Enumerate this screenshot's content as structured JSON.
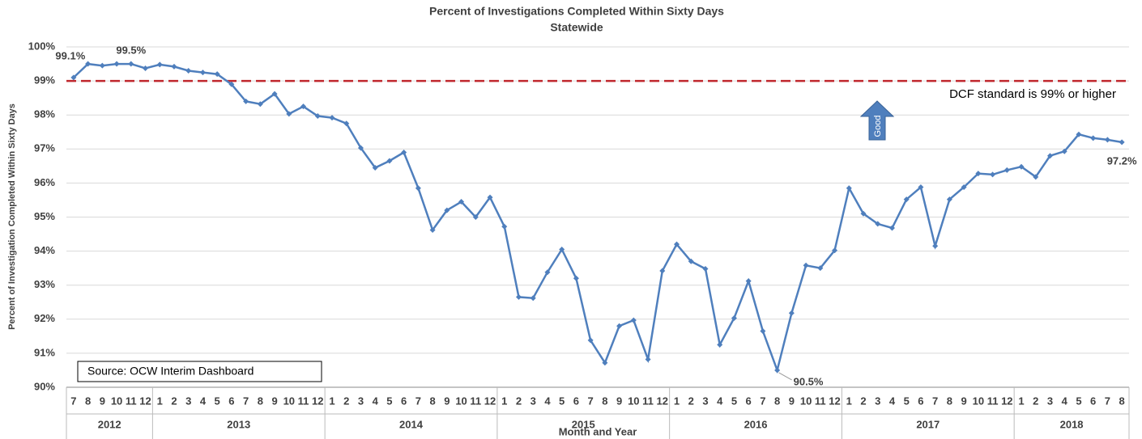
{
  "chart_data": {
    "type": "line",
    "title": "Percent of Investigations Completed Within Sixty Days",
    "subtitle": "Statewide",
    "y_label": "Percent of Investigation Completed Within Sixty Days",
    "x_label": "Month and Year",
    "categories": [
      "7",
      "8",
      "9",
      "10",
      "11",
      "12",
      "1",
      "2",
      "3",
      "4",
      "5",
      "6",
      "7",
      "8",
      "9",
      "10",
      "11",
      "12",
      "1",
      "2",
      "3",
      "4",
      "5",
      "6",
      "7",
      "8",
      "9",
      "10",
      "11",
      "12",
      "1",
      "2",
      "3",
      "4",
      "5",
      "6",
      "7",
      "8",
      "9",
      "10",
      "11",
      "12",
      "1",
      "2",
      "3",
      "4",
      "5",
      "6",
      "7",
      "8",
      "9",
      "10",
      "11",
      "12",
      "1",
      "2",
      "3",
      "4",
      "5",
      "6",
      "7",
      "8",
      "9",
      "10",
      "11",
      "12",
      "1",
      "2",
      "3",
      "4",
      "5",
      "6",
      "7",
      "8"
    ],
    "years": [
      "2012",
      "2013",
      "2014",
      "2015",
      "2016",
      "2017",
      "2018"
    ],
    "series": [
      {
        "name": "Statewide",
        "color": "#4f7fbd",
        "values": [
          99.1,
          99.5,
          99.45,
          99.5,
          99.5,
          99.37,
          99.48,
          99.42,
          99.3,
          99.25,
          99.2,
          98.9,
          98.4,
          98.32,
          98.62,
          98.03,
          98.25,
          97.97,
          97.92,
          97.75,
          97.03,
          96.45,
          96.65,
          96.9,
          95.85,
          94.62,
          95.2,
          95.45,
          95.0,
          95.58,
          94.72,
          92.65,
          92.62,
          93.38,
          94.05,
          93.2,
          91.38,
          90.72,
          91.8,
          91.97,
          90.82,
          93.42,
          94.2,
          93.7,
          93.48,
          91.25,
          92.03,
          93.12,
          91.65,
          90.5,
          92.18,
          93.58,
          93.5,
          94.02,
          95.85,
          95.1,
          94.8,
          94.68,
          95.52,
          95.88,
          94.15,
          95.52,
          95.88,
          96.28,
          96.25,
          96.38,
          96.48,
          96.18,
          96.8,
          96.93,
          97.43,
          97.32,
          97.27,
          97.2
        ],
        "value_labels": [
          "99.1%",
          null,
          null,
          null,
          "99.5%",
          null,
          null,
          null,
          null,
          null,
          null,
          null,
          null,
          null,
          null,
          null,
          null,
          null,
          null,
          null,
          null,
          null,
          null,
          null,
          null,
          null,
          null,
          null,
          null,
          null,
          null,
          null,
          null,
          null,
          null,
          null,
          null,
          null,
          null,
          null,
          null,
          null,
          null,
          null,
          null,
          null,
          null,
          null,
          null,
          "90.5%",
          null,
          null,
          null,
          null,
          null,
          null,
          null,
          null,
          null,
          null,
          null,
          null,
          null,
          null,
          null,
          null,
          null,
          null,
          null,
          null,
          null,
          null,
          null,
          "97.2%"
        ]
      }
    ],
    "ylim": [
      90,
      100
    ],
    "yticks": [
      {
        "value": 90,
        "label": "90%"
      },
      {
        "value": 91,
        "label": "91%"
      },
      {
        "value": 92,
        "label": "92%"
      },
      {
        "value": 93,
        "label": "93%"
      },
      {
        "value": 94,
        "label": "94%"
      },
      {
        "value": 95,
        "label": "95%"
      },
      {
        "value": 96,
        "label": "96%"
      },
      {
        "value": 97,
        "label": "97%"
      },
      {
        "value": 98,
        "label": "98%"
      },
      {
        "value": 99,
        "label": "99%"
      },
      {
        "value": 100,
        "label": "100%"
      }
    ],
    "grid": true,
    "reference_line": {
      "value": 99,
      "label": "DCF standard is 99% or higher",
      "color": "#c0272d"
    },
    "arrow_label": "Good",
    "source": "Source:  OCW Interim  Dashboard"
  }
}
